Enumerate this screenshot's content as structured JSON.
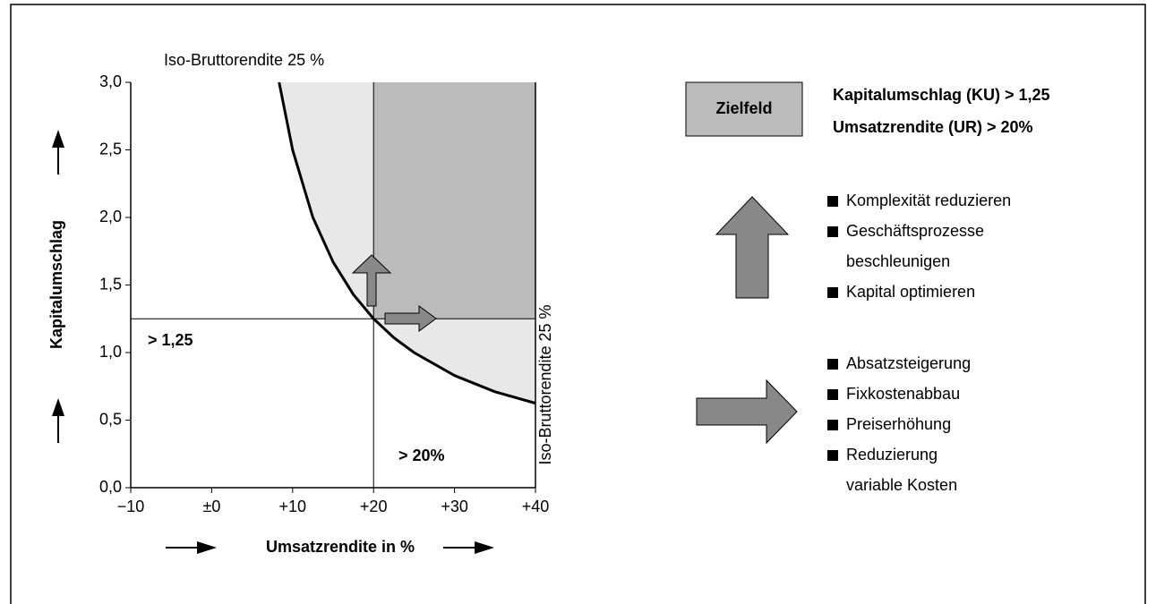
{
  "chart_data": {
    "type": "line",
    "title": "Iso-Bruttorendite 25 %",
    "curve_label": "Iso-Bruttorendite 25 %",
    "xlabel": "Umsatzrendite in %",
    "ylabel": "Kapitalumschlag",
    "x": [
      8.33,
      10,
      12.5,
      15,
      17.5,
      20,
      22.5,
      25,
      30,
      35,
      40
    ],
    "series": [
      {
        "name": "Iso-Bruttorendite 25 %",
        "color": "#000000",
        "values": [
          3.0,
          2.5,
          2.0,
          1.67,
          1.43,
          1.25,
          1.11,
          1.0,
          0.83,
          0.71,
          0.625
        ]
      }
    ],
    "xlim": [
      -10,
      40
    ],
    "ylim": [
      0,
      3.0
    ],
    "xticks": [
      {
        "value": -10,
        "label": "−10"
      },
      {
        "value": 0,
        "label": "±0"
      },
      {
        "value": 10,
        "label": "+10"
      },
      {
        "value": 20,
        "label": "+20"
      },
      {
        "value": 30,
        "label": "+30"
      },
      {
        "value": 40,
        "label": "+40"
      }
    ],
    "yticks": [
      {
        "value": 0,
        "label": "0,0"
      },
      {
        "value": 0.5,
        "label": "0,5"
      },
      {
        "value": 1.0,
        "label": "1,0"
      },
      {
        "value": 1.5,
        "label": "1,5"
      },
      {
        "value": 2.0,
        "label": "2,0"
      },
      {
        "value": 2.5,
        "label": "2,5"
      },
      {
        "value": 3.0,
        "label": "3,0"
      }
    ],
    "threshold_y": {
      "value": 1.25,
      "label": "> 1,25"
    },
    "threshold_x": {
      "value": 20,
      "label": "> 20%"
    },
    "area_color": "#e8e8e8",
    "target_color": "#bbbbbb"
  },
  "target": {
    "label": "Zielfeld",
    "lines": [
      "Kapitalumschlag (KU) > 1,25",
      "Umsatzrendite (UR) > 20%"
    ]
  },
  "measures_up": [
    [
      "Komplexität reduzieren"
    ],
    [
      "Geschäftsprozesse",
      "beschleunigen"
    ],
    [
      "Kapital optimieren"
    ]
  ],
  "measures_right": [
    [
      "Absatzsteigerung"
    ],
    [
      "Fixkostenabbau"
    ],
    [
      "Preiserhöhung"
    ],
    [
      "Reduzierung",
      "variable Kosten"
    ]
  ]
}
